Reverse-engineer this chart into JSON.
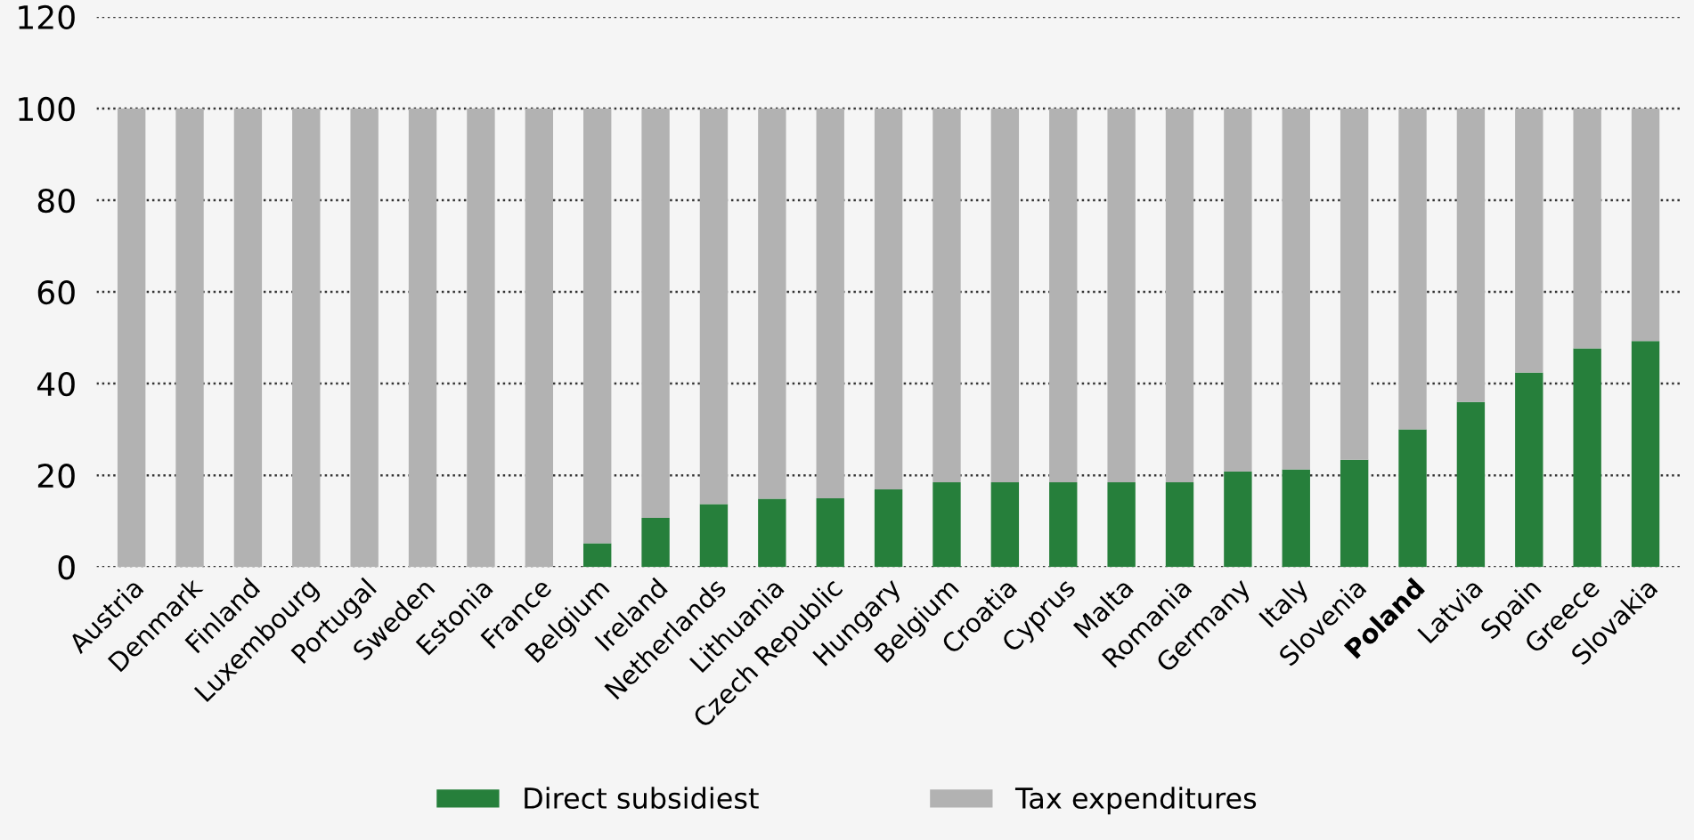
{
  "chart_data": {
    "type": "bar",
    "stacked": true,
    "categories": [
      "Austria",
      "Denmark",
      "Finland",
      "Luxembourg",
      "Portugal",
      "Sweden",
      "Estonia",
      "France",
      "Belgium",
      "Ireland",
      "Netherlands",
      "Lithuania",
      "Czech Republic",
      "Hungary",
      "Belgium",
      "Croatia",
      "Cyprus",
      "Malta",
      "Romania",
      "Germany",
      "Italy",
      "Slovenia",
      "Poland",
      "Latvia",
      "Spain",
      "Greece",
      "Slovakia"
    ],
    "series": [
      {
        "name": "Direct subsidiest",
        "color": "#267f3b",
        "values": [
          0,
          0,
          0,
          0,
          0,
          0,
          0,
          0,
          5.2,
          10.7,
          13.7,
          14.9,
          15,
          16.9,
          18.5,
          18.5,
          18.5,
          18.5,
          18.5,
          20.8,
          21.3,
          23.4,
          30,
          36,
          42.4,
          47.7,
          49.3
        ]
      },
      {
        "name": "Tax expenditures",
        "color": "#b2b2b2",
        "values": [
          100,
          100,
          100,
          100,
          100,
          100,
          100,
          100,
          94.8,
          89.3,
          86.3,
          85.1,
          85,
          83.1,
          81.5,
          81.5,
          81.5,
          81.5,
          81.5,
          79.2,
          78.7,
          76.6,
          70,
          64,
          57.6,
          52.3,
          50.7
        ]
      }
    ],
    "ylim": [
      0,
      120
    ],
    "yticks": [
      0,
      20,
      40,
      60,
      80,
      100,
      120
    ],
    "grid": "y",
    "legend": "bottom"
  }
}
